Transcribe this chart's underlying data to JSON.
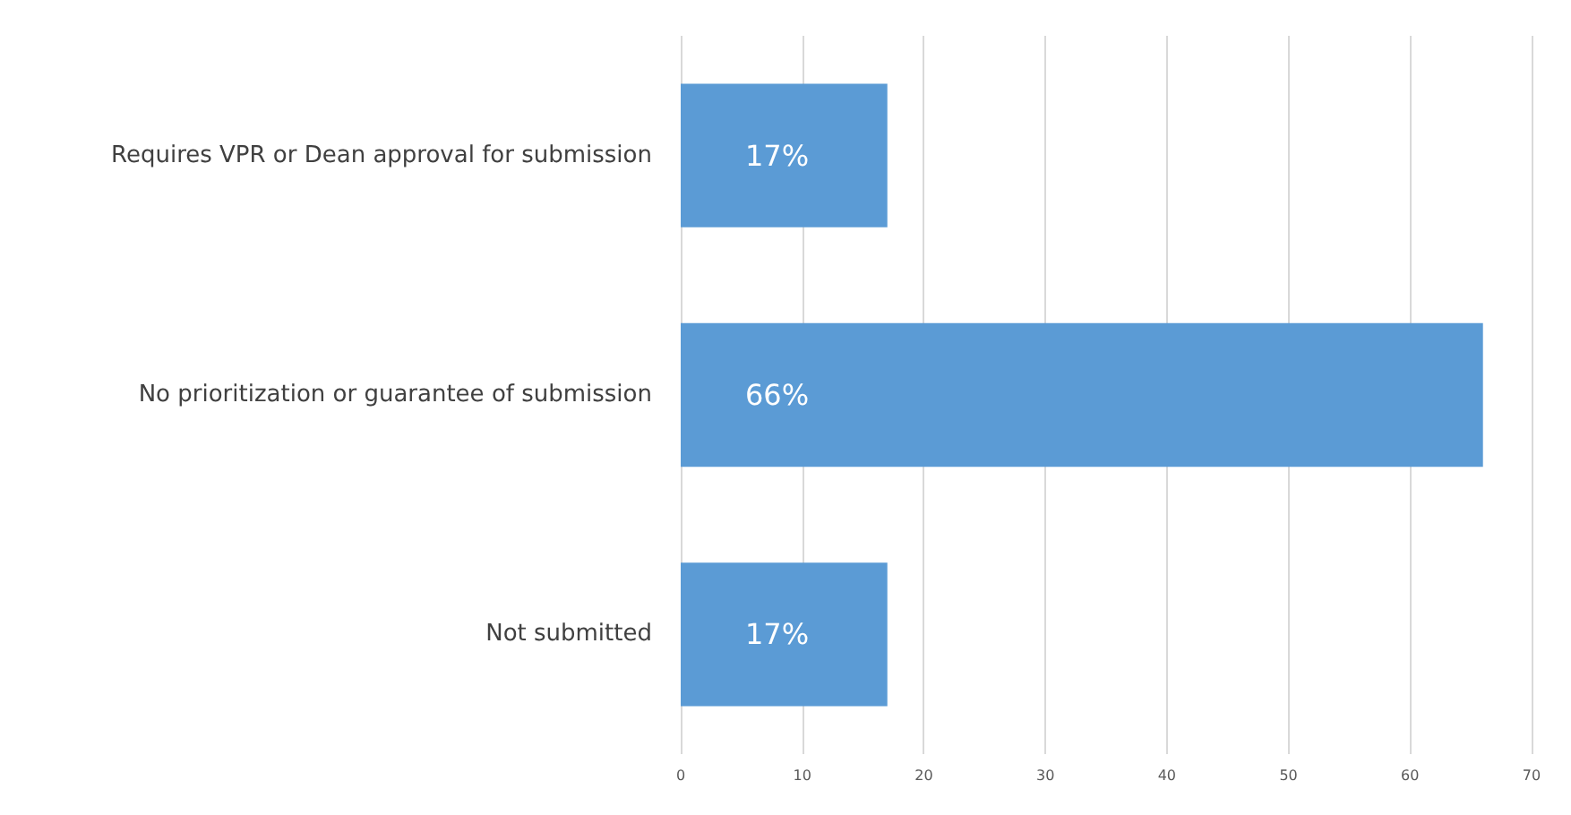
{
  "chart_data": {
    "type": "bar",
    "orientation": "horizontal",
    "categories": [
      "Requires VPR or Dean approval for submission",
      "No prioritization or guarantee of submission",
      "Not submitted"
    ],
    "values": [
      17,
      66,
      17
    ],
    "value_labels": [
      "17%",
      "66%",
      "17%"
    ],
    "color": "#5b9bd5",
    "xlim": [
      0,
      70
    ],
    "xticks": [
      0,
      10,
      20,
      30,
      40,
      50,
      60,
      70
    ],
    "grid": "x"
  }
}
